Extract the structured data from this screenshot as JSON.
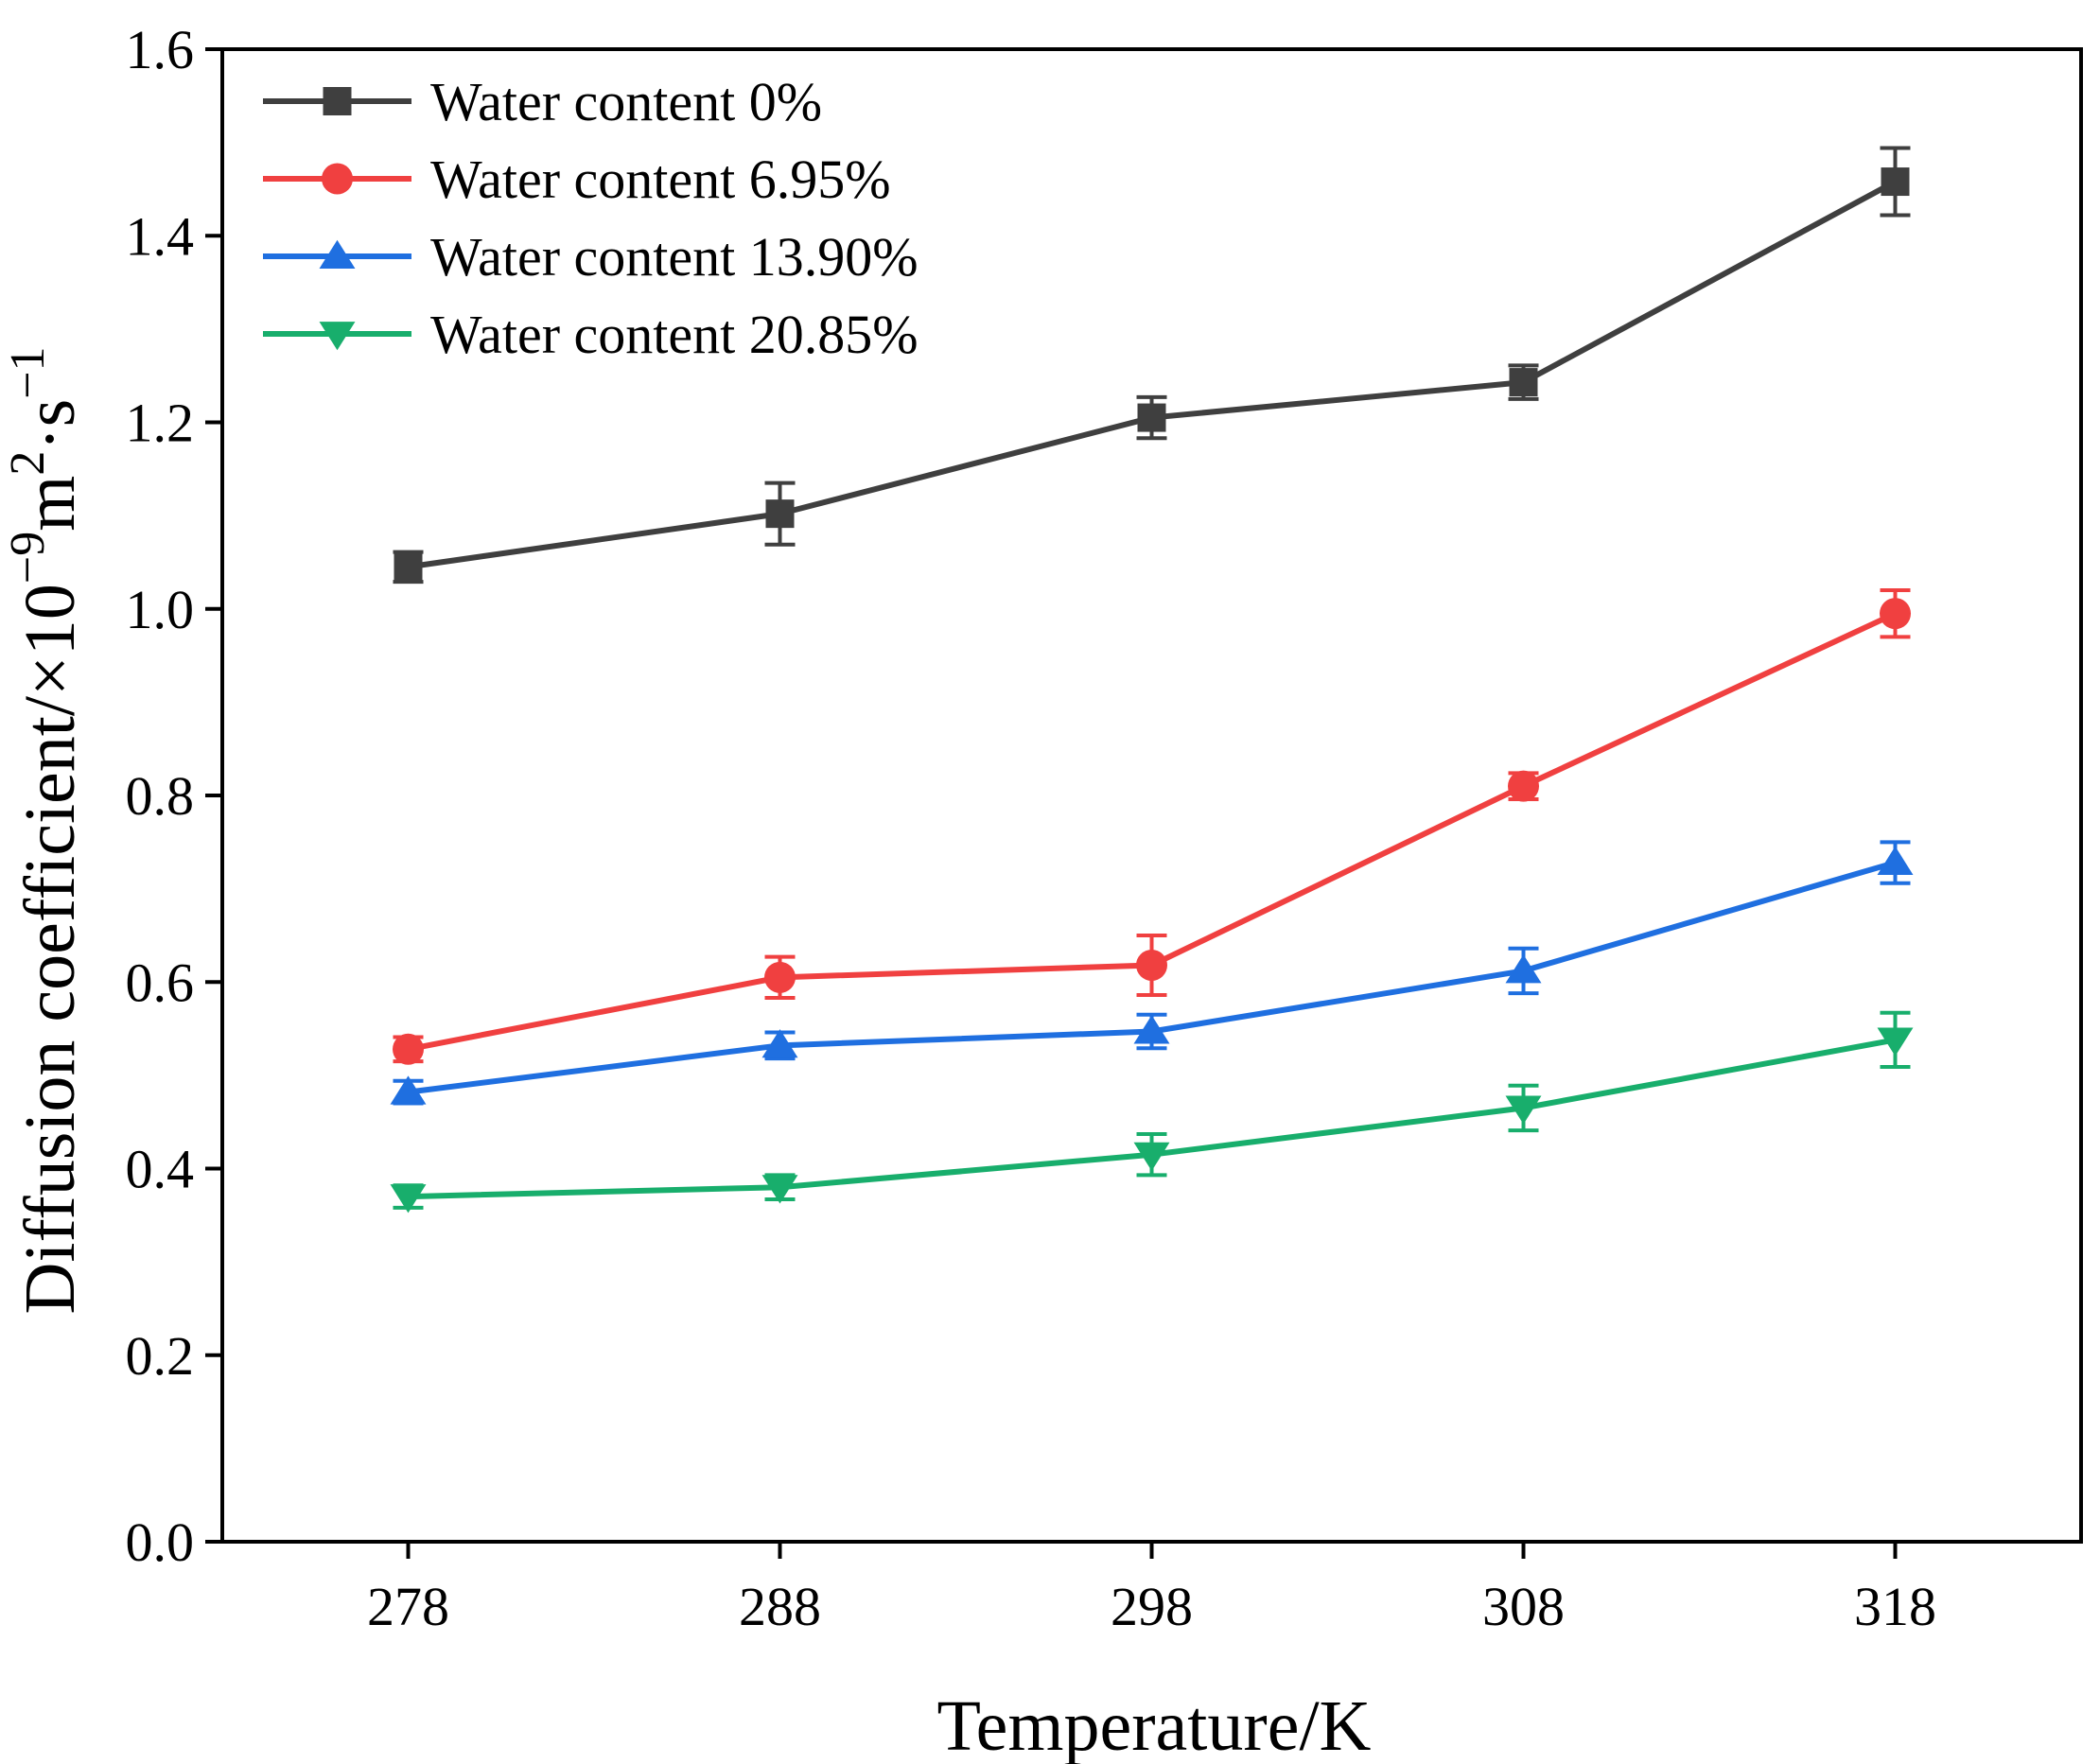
{
  "chart_data": {
    "type": "line",
    "title": "",
    "xlabel": "Temperature/K",
    "ylabel": {
      "prefix": "Diffusion coefficient/×10",
      "exp1": "−9",
      "mid": "m",
      "exp2": "2",
      "dot": "·s",
      "exp3": "−1"
    },
    "x": [
      278,
      288,
      298,
      308,
      318
    ],
    "x_tick_labels": [
      "278",
      "288",
      "298",
      "308",
      "318"
    ],
    "xlim": [
      273,
      323
    ],
    "ylim": [
      0.0,
      1.6
    ],
    "y_ticks": [
      0.0,
      0.2,
      0.4,
      0.6,
      0.8,
      1.0,
      1.2,
      1.4,
      1.6
    ],
    "y_tick_labels": [
      "0.0",
      "0.2",
      "0.4",
      "0.6",
      "0.8",
      "1.0",
      "1.2",
      "1.4",
      "1.6"
    ],
    "grid": false,
    "legend_position": "top-left",
    "series": [
      {
        "name": "Water content 0%",
        "color": "#3f3f3f",
        "marker": "square",
        "values": [
          1.045,
          1.102,
          1.205,
          1.243,
          1.458
        ],
        "errors": [
          0.016,
          0.033,
          0.022,
          0.018,
          0.036
        ]
      },
      {
        "name": "Water content 6.95%",
        "color": "#f04040",
        "marker": "circle",
        "values": [
          0.528,
          0.605,
          0.618,
          0.81,
          0.995
        ],
        "errors": [
          0.013,
          0.022,
          0.032,
          0.014,
          0.025
        ]
      },
      {
        "name": "Water content 13.90%",
        "color": "#1f6fe0",
        "marker": "triangle-up",
        "values": [
          0.482,
          0.532,
          0.547,
          0.612,
          0.728
        ],
        "errors": [
          0.012,
          0.014,
          0.018,
          0.024,
          0.022
        ]
      },
      {
        "name": "Water content 20.85%",
        "color": "#18ae6c",
        "marker": "triangle-down",
        "values": [
          0.37,
          0.38,
          0.415,
          0.465,
          0.538
        ],
        "errors": [
          0.012,
          0.013,
          0.022,
          0.024,
          0.029
        ]
      }
    ]
  }
}
